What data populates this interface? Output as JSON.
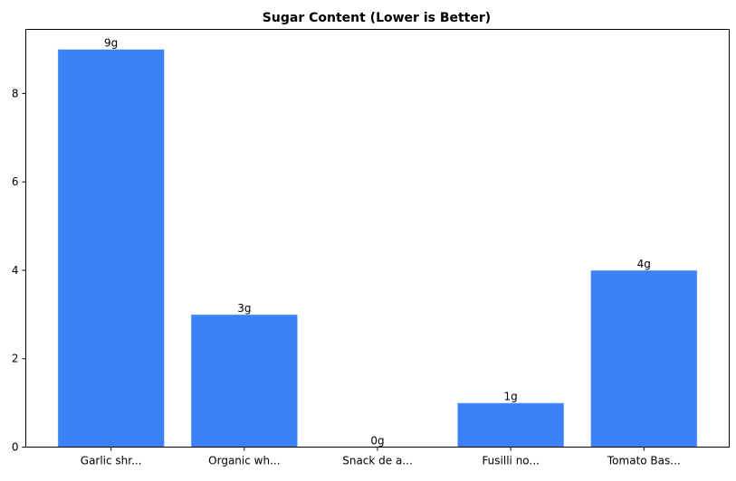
{
  "chart_data": {
    "type": "bar",
    "title": "Sugar Content (Lower is Better)",
    "xlabel": "",
    "ylabel": "",
    "categories": [
      "Garlic shr...",
      "Organic wh...",
      "Snack de a...",
      "Fusilli no...",
      "Tomato Bas..."
    ],
    "values": [
      9,
      3,
      0,
      1,
      4
    ],
    "data_labels": [
      "9g",
      "3g",
      "0g",
      "1g",
      "4g"
    ],
    "ylim": [
      0,
      9.45
    ],
    "yticks": [
      0,
      2,
      4,
      6,
      8
    ],
    "ytick_labels": [
      "0",
      "2",
      "4",
      "6",
      "8"
    ],
    "grid": false,
    "bar_color": "#3b82f6"
  }
}
